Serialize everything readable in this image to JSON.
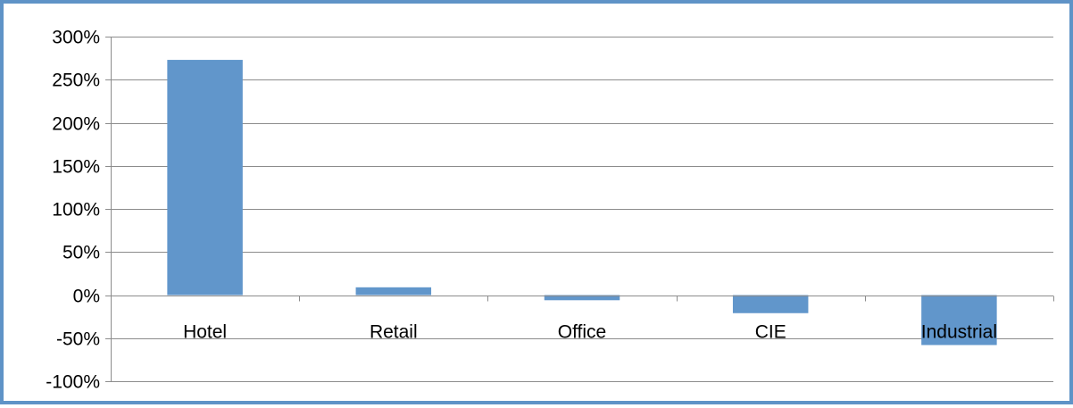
{
  "chart_data": {
    "type": "bar",
    "categories": [
      "Hotel",
      "Retail",
      "Office",
      "CIE",
      "Industrial"
    ],
    "values": [
      273,
      9,
      -6,
      -21,
      -58
    ],
    "title": "",
    "xlabel": "",
    "ylabel": "",
    "ylim": [
      -100,
      300
    ],
    "yticks": [
      -100,
      -50,
      0,
      50,
      100,
      150,
      200,
      250,
      300
    ],
    "ytick_labels": [
      "-100%",
      "-50%",
      "0%",
      "50%",
      "100%",
      "150%",
      "200%",
      "250%",
      "300%"
    ],
    "grid": true,
    "legend": "none",
    "bar_color": "#6196cb",
    "border_color": "#5f93c7",
    "grid_color": "#8c8c8c"
  }
}
